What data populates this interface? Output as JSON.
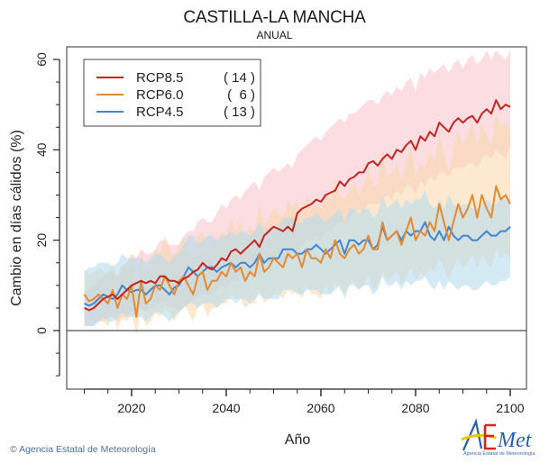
{
  "header": {
    "title": "CASTILLA-LA MANCHA",
    "subtitle": "ANUAL"
  },
  "footer": {
    "copyright_symbol": "©",
    "copyright_text": "Agencia Estatal de Meteorología",
    "logo_text": "AEmet",
    "logo_subtext": "Agencia Estatal de Meteorología"
  },
  "chart_data": {
    "type": "line",
    "title": "CASTILLA-LA MANCHA",
    "subtitle": "ANUAL",
    "xlabel": "Año",
    "ylabel": "Cambio en días cálidos (%)",
    "xlim": [
      2006,
      2103
    ],
    "ylim": [
      -13,
      63
    ],
    "xticks": [
      2020,
      2040,
      2060,
      2080,
      2100
    ],
    "xticks_minor": [
      2010,
      2015,
      2025,
      2030,
      2035,
      2045,
      2050,
      2055,
      2065,
      2070,
      2075,
      2085,
      2090,
      2095
    ],
    "yticks": [
      0,
      20,
      40,
      60
    ],
    "yticks_minor": [
      -10,
      -5,
      5,
      10,
      15,
      25,
      30,
      35,
      45,
      50,
      55
    ],
    "zero_line": 0,
    "grid": false,
    "legend_position": "top-left",
    "x_start": 2010,
    "x_end": 2100,
    "series": [
      {
        "name": "RCP8.5",
        "models": "( 14 )",
        "color": "#c8231c",
        "band_color": "#f9c6cf",
        "mean": [
          5,
          4.5,
          5,
          6,
          7,
          7.5,
          8,
          7,
          8,
          9,
          10,
          10.5,
          11,
          10.5,
          11,
          10.5,
          12,
          12,
          11,
          11,
          10.5,
          11.5,
          12,
          13,
          13.5,
          15,
          14,
          13.5,
          14.5,
          16,
          15.5,
          17.5,
          18,
          17,
          18,
          19,
          20,
          18.5,
          21,
          22,
          23,
          22.5,
          22,
          23,
          22,
          26,
          27,
          27.5,
          28,
          29,
          28.5,
          30,
          30.5,
          31,
          33,
          32,
          33.5,
          34,
          35,
          35,
          37,
          37.5,
          36.5,
          38,
          39,
          38,
          40,
          39.5,
          41,
          42,
          40,
          43,
          42,
          44,
          43,
          46,
          45,
          44,
          46,
          47,
          46,
          47,
          47.5,
          46,
          48,
          49,
          48,
          51,
          49,
          50,
          49.5
        ],
        "low": [
          1,
          1,
          1,
          2,
          2,
          3,
          3,
          2,
          3,
          3,
          4,
          5,
          5,
          4,
          5,
          5,
          6,
          6,
          5,
          5,
          4,
          5,
          6,
          7,
          7,
          8,
          8,
          8,
          9,
          10,
          9,
          11,
          11,
          11,
          12,
          13,
          13,
          12,
          14,
          15,
          16,
          15,
          15,
          16,
          16,
          18,
          19,
          20,
          20,
          21,
          20,
          22,
          22,
          23,
          24,
          24,
          25,
          26,
          27,
          26,
          28,
          28,
          28,
          29,
          30,
          29,
          31,
          30,
          32,
          32,
          30,
          33,
          32,
          34,
          33,
          35,
          35,
          34,
          36,
          36,
          36,
          37,
          37,
          36,
          38,
          39,
          38,
          40,
          39,
          38,
          41
        ],
        "high": [
          9,
          9,
          10,
          11,
          12,
          13,
          13,
          12,
          14,
          15,
          17,
          16,
          18,
          17,
          17,
          18,
          20,
          20,
          19,
          19,
          19,
          21,
          22,
          22,
          24,
          25,
          24,
          24,
          26,
          28,
          27,
          29,
          30,
          29,
          31,
          32,
          33,
          31,
          34,
          35,
          36,
          35,
          36,
          37,
          36,
          39,
          40,
          41,
          42,
          43,
          42,
          44,
          45,
          46,
          47,
          46,
          48,
          48,
          49,
          50,
          51,
          51,
          50,
          52,
          53,
          52,
          54,
          53,
          55,
          56,
          53,
          57,
          56,
          58,
          57,
          58,
          59,
          57,
          59,
          60,
          58,
          60,
          61,
          59,
          60,
          62,
          60,
          62,
          61,
          60,
          62
        ]
      },
      {
        "name": "RCP6.0",
        "models": "(  6 )",
        "color": "#e48a33",
        "band_color": "#fcd9b0",
        "mean": [
          8,
          6.5,
          7,
          8,
          7,
          6,
          9,
          5,
          8,
          7,
          10,
          3,
          11,
          6,
          7,
          10,
          9,
          12,
          10,
          8,
          11,
          12,
          10,
          8,
          12,
          13,
          9,
          11,
          11,
          13,
          12,
          15,
          13,
          14,
          11,
          13,
          12,
          17,
          13,
          14,
          16,
          15,
          14,
          17,
          16,
          17,
          14,
          18,
          16,
          16,
          15,
          18,
          16,
          20,
          17,
          16,
          18,
          19,
          17,
          18,
          21,
          18,
          18,
          24,
          20,
          21,
          22,
          19,
          22,
          25,
          20,
          22,
          21,
          24,
          22,
          28,
          24,
          20,
          24,
          28,
          25,
          27,
          30,
          25,
          30,
          27,
          25,
          32,
          29,
          30,
          28
        ],
        "low": [
          3,
          2,
          3,
          3,
          2,
          1,
          4,
          0,
          3,
          2,
          4,
          -1,
          5,
          1,
          2,
          4,
          3,
          5,
          4,
          2,
          4,
          6,
          4,
          2,
          5,
          6,
          3,
          5,
          5,
          6,
          6,
          8,
          7,
          7,
          5,
          6,
          6,
          9,
          6,
          7,
          8,
          8,
          7,
          9,
          8,
          9,
          7,
          10,
          8,
          8,
          7,
          10,
          8,
          11,
          9,
          8,
          10,
          11,
          9,
          10,
          12,
          9,
          10,
          13,
          11,
          12,
          13,
          10,
          12,
          14,
          11,
          13,
          12,
          14,
          13,
          16,
          14,
          11,
          14,
          16,
          14,
          15,
          17,
          14,
          17,
          15,
          14,
          18,
          16,
          17,
          16
        ],
        "high": [
          14,
          12,
          13,
          14,
          13,
          12,
          15,
          11,
          15,
          13,
          17,
          10,
          18,
          13,
          14,
          18,
          17,
          21,
          18,
          16,
          19,
          21,
          18,
          16,
          21,
          22,
          17,
          20,
          20,
          22,
          21,
          25,
          22,
          24,
          20,
          23,
          22,
          28,
          23,
          25,
          27,
          26,
          25,
          29,
          27,
          29,
          25,
          30,
          27,
          28,
          27,
          31,
          28,
          34,
          30,
          29,
          31,
          33,
          30,
          32,
          36,
          32,
          32,
          40,
          34,
          35,
          37,
          33,
          37,
          41,
          34,
          37,
          36,
          40,
          37,
          44,
          39,
          35,
          40,
          44,
          41,
          43,
          46,
          41,
          46,
          43,
          41,
          48,
          45,
          46,
          44
        ]
      },
      {
        "name": "RCP4.5",
        "models": "( 13 )",
        "color": "#3f87d4",
        "band_color": "#b7dcec",
        "mean": [
          6,
          5.5,
          6,
          7,
          8,
          7.5,
          7,
          8,
          10,
          9,
          8.5,
          9,
          9,
          8,
          9,
          10,
          10,
          9,
          8,
          9.5,
          10,
          12,
          14,
          13,
          12,
          13,
          14,
          14,
          13,
          14,
          14.5,
          15,
          14,
          15,
          15,
          14,
          15,
          17,
          15,
          16,
          16,
          16,
          18,
          18,
          18,
          17,
          17,
          18,
          18,
          19,
          18,
          17,
          18,
          19,
          20,
          17,
          20,
          20,
          19,
          20,
          20,
          18,
          19,
          23,
          20,
          21,
          22,
          20,
          22,
          21,
          22,
          22,
          24,
          21,
          20,
          22,
          20,
          23,
          21,
          20,
          21,
          21,
          20,
          20,
          21,
          22,
          21,
          21,
          22,
          22,
          23
        ],
        "low": [
          1,
          1,
          1,
          2,
          3,
          2,
          2,
          3,
          4,
          3,
          3,
          3,
          3,
          2,
          3,
          4,
          4,
          3,
          2,
          3,
          4,
          5,
          6,
          6,
          5,
          6,
          6,
          6,
          5,
          6,
          7,
          7,
          6,
          7,
          7,
          6,
          7,
          8,
          7,
          7,
          7,
          7,
          9,
          9,
          9,
          8,
          8,
          9,
          9,
          9,
          8,
          8,
          8,
          9,
          10,
          7,
          10,
          10,
          9,
          10,
          10,
          8,
          9,
          12,
          10,
          10,
          11,
          9,
          11,
          10,
          11,
          11,
          12,
          10,
          9,
          11,
          9,
          11,
          10,
          9,
          10,
          10,
          9,
          9,
          10,
          11,
          10,
          10,
          11,
          11,
          12
        ],
        "high": [
          13,
          14,
          14,
          15,
          15,
          15,
          14,
          15,
          17,
          16,
          16,
          16,
          16,
          15,
          16,
          17,
          17,
          16,
          15,
          17,
          17,
          19,
          21,
          21,
          19,
          20,
          21,
          21,
          20,
          21,
          21,
          22,
          21,
          22,
          22,
          21,
          22,
          24,
          22,
          23,
          23,
          23,
          25,
          25,
          25,
          24,
          24,
          25,
          25,
          26,
          25,
          24,
          25,
          26,
          27,
          24,
          27,
          27,
          26,
          27,
          27,
          25,
          26,
          30,
          27,
          28,
          29,
          27,
          29,
          28,
          29,
          29,
          31,
          28,
          27,
          29,
          27,
          30,
          28,
          27,
          28,
          28,
          27,
          27,
          28,
          29,
          28,
          28,
          29,
          29,
          30
        ]
      }
    ]
  }
}
